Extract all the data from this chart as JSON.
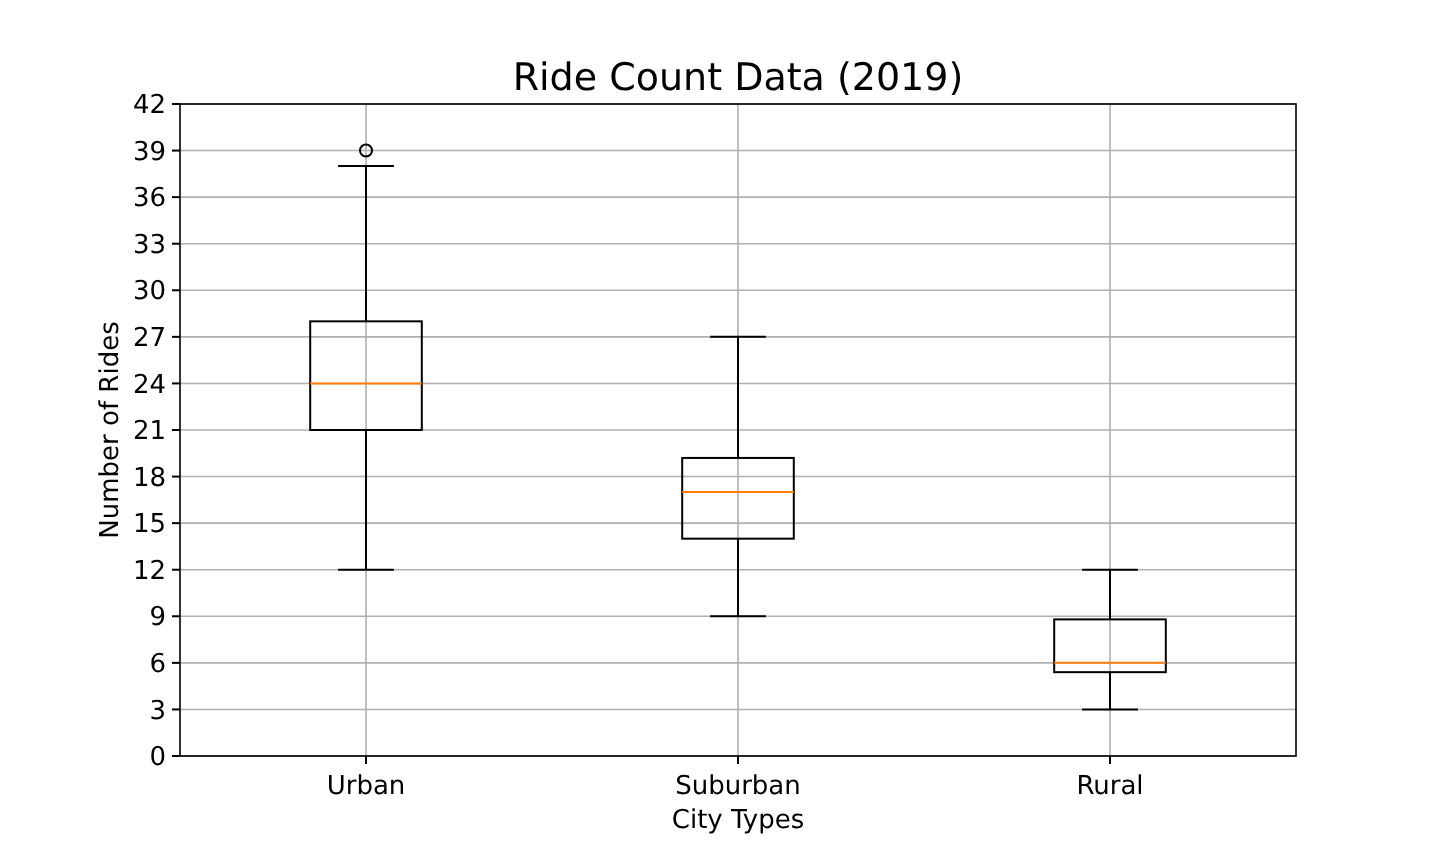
{
  "chart_data": {
    "type": "box",
    "title": "Ride Count Data (2019)",
    "xlabel": "City Types",
    "ylabel": "Number of Rides",
    "categories": [
      "Urban",
      "Suburban",
      "Rural"
    ],
    "boxes": [
      {
        "low": 12,
        "q1": 21,
        "median": 24,
        "q3": 28,
        "high": 38,
        "outliers": [
          39
        ]
      },
      {
        "low": 9,
        "q1": 14,
        "median": 17,
        "q3": 19.2,
        "high": 27
      },
      {
        "low": 3,
        "q1": 5.4,
        "median": 6,
        "q3": 8.8,
        "high": 12
      }
    ],
    "color": "#000000",
    "ylim": [
      0,
      42
    ],
    "yticks": [
      0,
      3,
      6,
      9,
      12,
      15,
      18,
      21,
      24,
      27,
      30,
      33,
      36,
      39,
      42
    ],
    "grid": true
  }
}
